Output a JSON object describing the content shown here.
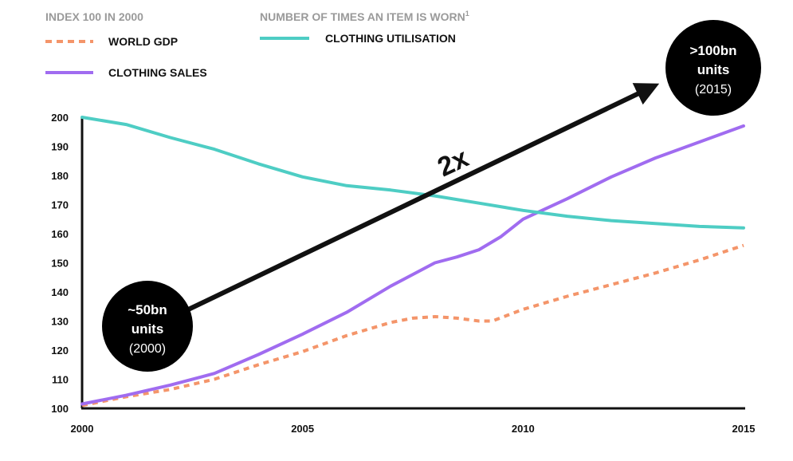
{
  "chart_data": {
    "type": "line",
    "title": "",
    "xlabel": "",
    "ylabel": "",
    "xlim": [
      2000,
      2015
    ],
    "ylim": [
      100,
      200
    ],
    "x_ticks": [
      "2000",
      "2005",
      "2010",
      "2015"
    ],
    "y_ticks": [
      "100",
      "110",
      "120",
      "130",
      "140",
      "150",
      "160",
      "170",
      "180",
      "190",
      "200"
    ],
    "legend": {
      "left_heading": "INDEX 100 IN 2000",
      "right_heading": "NUMBER OF TIMES AN ITEM IS WORN",
      "right_heading_sup": "1"
    },
    "series": [
      {
        "name": "WORLD GDP",
        "color": "#f4956a",
        "style": "dashed",
        "x": [
          2000,
          2001,
          2002,
          2003,
          2004,
          2005,
          2006,
          2007,
          2007.5,
          2008,
          2008.5,
          2009,
          2009.3,
          2010,
          2011,
          2012,
          2013,
          2014,
          2015
        ],
        "y": [
          101,
          104,
          106.5,
          110,
          115,
          119.5,
          125,
          129.5,
          131,
          131.5,
          131,
          130,
          130,
          134,
          138.5,
          142.5,
          146.5,
          151,
          156
        ]
      },
      {
        "name": "CLOTHING SALES",
        "color": "#a06cf0",
        "style": "solid",
        "x": [
          2000,
          2001,
          2002,
          2003,
          2004,
          2005,
          2006,
          2007,
          2007.5,
          2008,
          2008.5,
          2009,
          2009.5,
          2010,
          2011,
          2012,
          2013,
          2014,
          2015
        ],
        "y": [
          101.5,
          104.5,
          108,
          112,
          118.5,
          125.5,
          133,
          142,
          146,
          150,
          152,
          154.5,
          159,
          165,
          172,
          179.5,
          186,
          191.5,
          197
        ]
      },
      {
        "name": "CLOTHING UTILISATION",
        "color": "#4ecdc4",
        "style": "solid",
        "x": [
          2000,
          2001,
          2002,
          2003,
          2004,
          2005,
          2006,
          2007,
          2008,
          2009,
          2010,
          2011,
          2012,
          2013,
          2014,
          2015
        ],
        "y": [
          200,
          197.5,
          193,
          189,
          184,
          179.5,
          176.5,
          175,
          173,
          170.5,
          168,
          166,
          164.5,
          163.5,
          162.5,
          162
        ]
      }
    ],
    "annotations": {
      "start_bubble": {
        "line1": "~50bn",
        "line2": "units",
        "line3": "(2000)"
      },
      "end_bubble": {
        "line1": ">100bn",
        "line2": "units",
        "line3": "(2015)"
      },
      "multiplier": "2x"
    }
  }
}
